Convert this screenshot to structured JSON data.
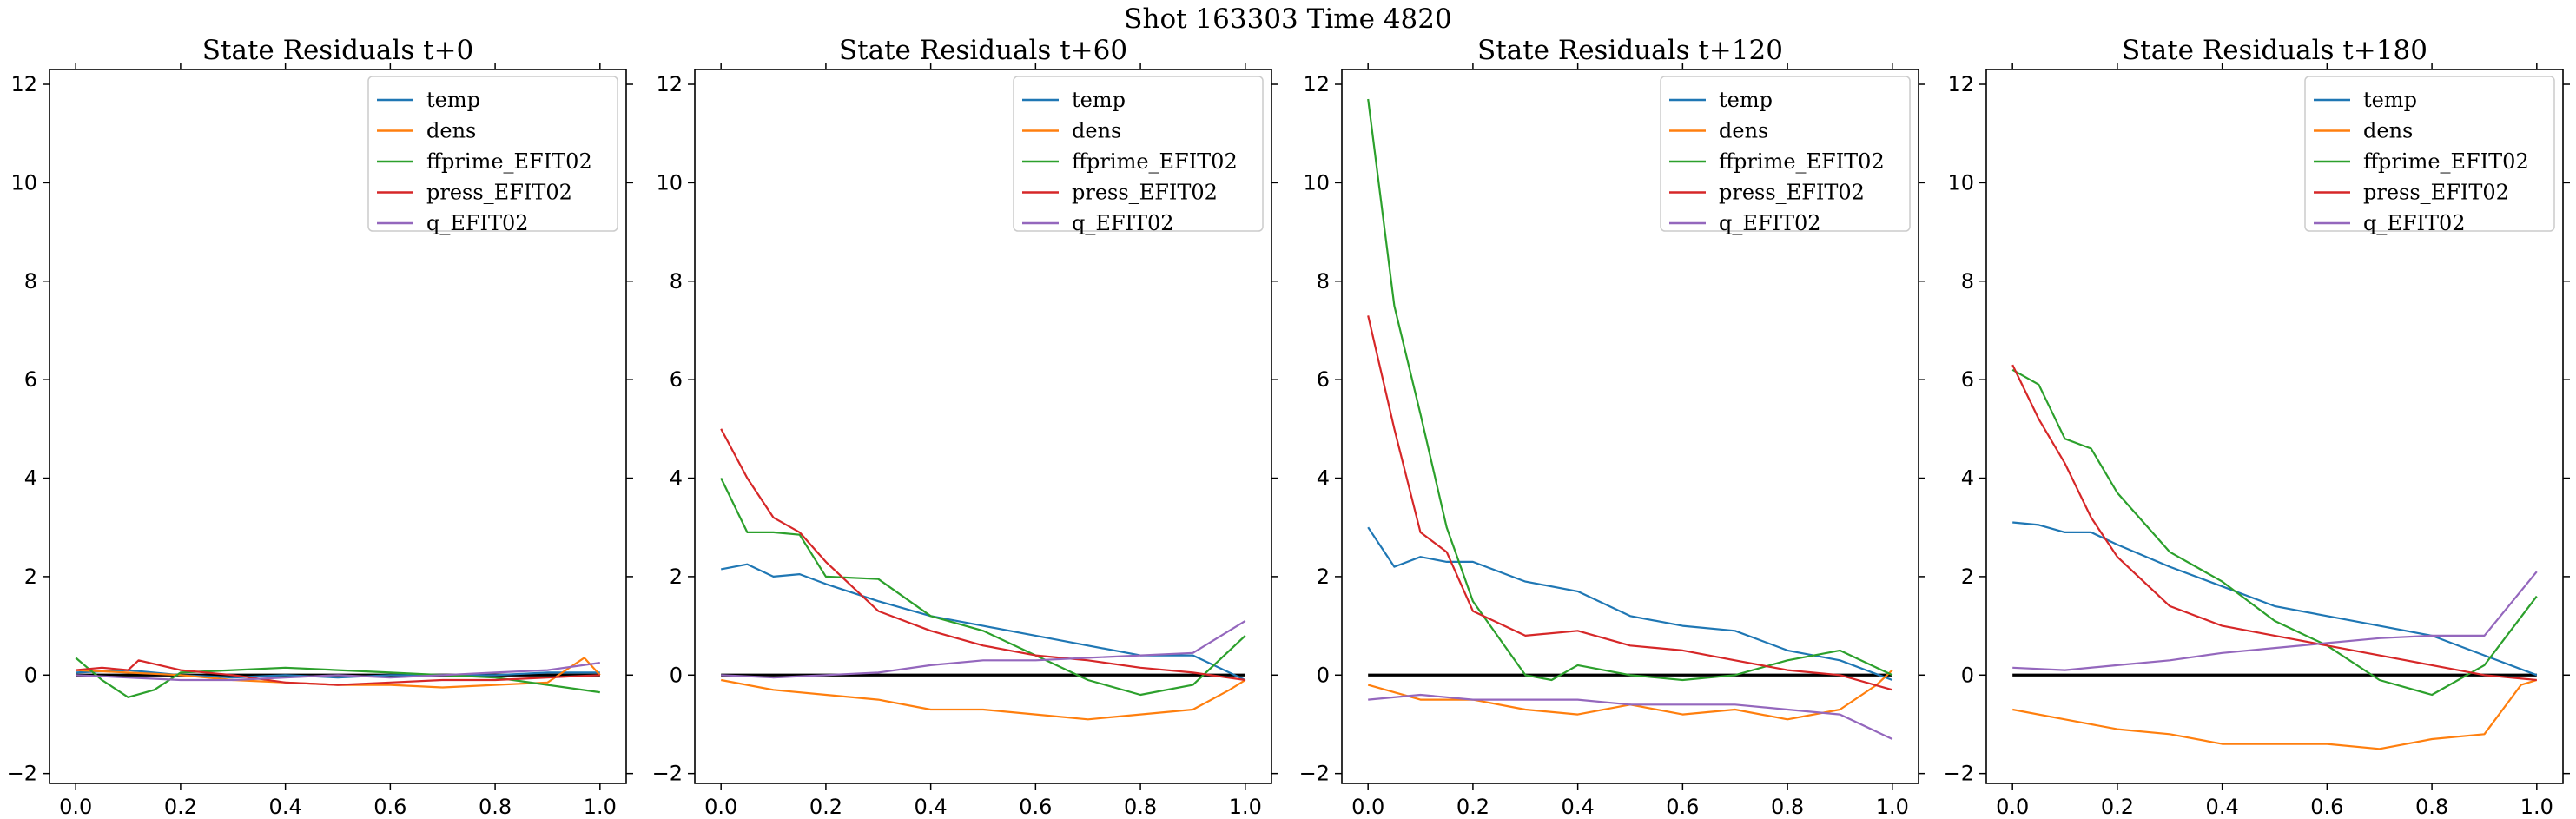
{
  "suptitle": "Shot 163303   Time 4820",
  "colors": {
    "temp": "#1f77b4",
    "dens": "#ff7f0e",
    "ffprime_EFIT02": "#2ca02c",
    "press_EFIT02": "#d62728",
    "q_EFIT02": "#9467bd",
    "zero_line": "#000000"
  },
  "chart_data": [
    {
      "type": "line",
      "title": "State Residuals t+0",
      "xlim": [
        -0.05,
        1.05
      ],
      "ylim": [
        -2.2,
        12.3
      ],
      "xticks": [
        "0.0",
        "0.2",
        "0.4",
        "0.6",
        "0.8",
        "1.0"
      ],
      "yticks": [
        "−2",
        "0",
        "2",
        "4",
        "6",
        "8",
        "10",
        "12"
      ],
      "legend_position": "upper-right",
      "series": [
        {
          "name": "temp",
          "x": [
            0.0,
            0.1,
            0.2,
            0.3,
            0.4,
            0.5,
            0.6,
            0.7,
            0.8,
            0.9,
            1.0
          ],
          "values": [
            0.05,
            0.1,
            0.0,
            -0.05,
            0.0,
            -0.05,
            0.0,
            0.0,
            0.0,
            0.05,
            0.05
          ]
        },
        {
          "name": "dens",
          "x": [
            0.0,
            0.1,
            0.2,
            0.3,
            0.4,
            0.5,
            0.6,
            0.7,
            0.8,
            0.9,
            0.97,
            1.0
          ],
          "values": [
            0.1,
            0.05,
            0.0,
            -0.1,
            -0.15,
            -0.2,
            -0.2,
            -0.25,
            -0.2,
            -0.15,
            0.35,
            0.0
          ]
        },
        {
          "name": "ffprime_EFIT02",
          "x": [
            0.0,
            0.05,
            0.1,
            0.15,
            0.2,
            0.3,
            0.4,
            0.5,
            0.6,
            0.7,
            0.8,
            0.9,
            1.0
          ],
          "values": [
            0.35,
            -0.1,
            -0.45,
            -0.3,
            0.05,
            0.1,
            0.15,
            0.1,
            0.05,
            0.0,
            -0.05,
            -0.2,
            -0.35
          ]
        },
        {
          "name": "press_EFIT02",
          "x": [
            0.0,
            0.05,
            0.1,
            0.12,
            0.2,
            0.3,
            0.4,
            0.5,
            0.6,
            0.7,
            0.8,
            0.9,
            1.0
          ],
          "values": [
            0.1,
            0.15,
            0.1,
            0.3,
            0.1,
            0.0,
            -0.15,
            -0.2,
            -0.15,
            -0.1,
            -0.1,
            -0.05,
            0.0
          ]
        },
        {
          "name": "q_EFIT02",
          "x": [
            0.0,
            0.1,
            0.2,
            0.3,
            0.4,
            0.5,
            0.6,
            0.7,
            0.8,
            0.9,
            1.0
          ],
          "values": [
            0.0,
            -0.05,
            -0.1,
            -0.1,
            -0.05,
            0.0,
            -0.05,
            0.0,
            0.05,
            0.1,
            0.25
          ]
        }
      ]
    },
    {
      "type": "line",
      "title": "State Residuals t+60",
      "xlim": [
        -0.05,
        1.05
      ],
      "ylim": [
        -2.2,
        12.3
      ],
      "xticks": [
        "0.0",
        "0.2",
        "0.4",
        "0.6",
        "0.8",
        "1.0"
      ],
      "yticks": [
        "−2",
        "0",
        "2",
        "4",
        "6",
        "8",
        "10",
        "12"
      ],
      "legend_position": "upper-right",
      "series": [
        {
          "name": "temp",
          "x": [
            0.0,
            0.05,
            0.1,
            0.15,
            0.2,
            0.3,
            0.4,
            0.5,
            0.6,
            0.7,
            0.8,
            0.9,
            1.0
          ],
          "values": [
            2.15,
            2.25,
            2.0,
            2.05,
            1.85,
            1.5,
            1.2,
            1.0,
            0.8,
            0.6,
            0.4,
            0.4,
            -0.1
          ]
        },
        {
          "name": "dens",
          "x": [
            0.0,
            0.1,
            0.2,
            0.3,
            0.4,
            0.5,
            0.6,
            0.7,
            0.8,
            0.9,
            0.97,
            1.0
          ],
          "values": [
            -0.1,
            -0.3,
            -0.4,
            -0.5,
            -0.7,
            -0.7,
            -0.8,
            -0.9,
            -0.8,
            -0.7,
            -0.3,
            -0.1
          ]
        },
        {
          "name": "ffprime_EFIT02",
          "x": [
            0.0,
            0.05,
            0.1,
            0.15,
            0.2,
            0.3,
            0.4,
            0.5,
            0.6,
            0.7,
            0.8,
            0.9,
            1.0
          ],
          "values": [
            4.0,
            2.9,
            2.9,
            2.85,
            2.0,
            1.95,
            1.2,
            0.9,
            0.4,
            -0.1,
            -0.4,
            -0.2,
            0.8
          ]
        },
        {
          "name": "press_EFIT02",
          "x": [
            0.0,
            0.05,
            0.1,
            0.15,
            0.2,
            0.3,
            0.4,
            0.5,
            0.6,
            0.7,
            0.8,
            0.9,
            1.0
          ],
          "values": [
            5.0,
            4.0,
            3.2,
            2.9,
            2.3,
            1.3,
            0.9,
            0.6,
            0.4,
            0.3,
            0.15,
            0.05,
            -0.1
          ]
        },
        {
          "name": "q_EFIT02",
          "x": [
            0.0,
            0.1,
            0.2,
            0.3,
            0.4,
            0.5,
            0.6,
            0.7,
            0.8,
            0.9,
            1.0
          ],
          "values": [
            0.0,
            -0.05,
            0.0,
            0.05,
            0.2,
            0.3,
            0.3,
            0.35,
            0.4,
            0.45,
            1.1
          ]
        }
      ]
    },
    {
      "type": "line",
      "title": "State Residuals t+120",
      "xlim": [
        -0.05,
        1.05
      ],
      "ylim": [
        -2.2,
        12.3
      ],
      "xticks": [
        "0.0",
        "0.2",
        "0.4",
        "0.6",
        "0.8",
        "1.0"
      ],
      "yticks": [
        "−2",
        "0",
        "2",
        "4",
        "6",
        "8",
        "10",
        "12"
      ],
      "legend_position": "upper-right",
      "series": [
        {
          "name": "temp",
          "x": [
            0.0,
            0.05,
            0.1,
            0.15,
            0.2,
            0.3,
            0.4,
            0.5,
            0.6,
            0.7,
            0.8,
            0.9,
            1.0
          ],
          "values": [
            3.0,
            2.2,
            2.4,
            2.3,
            2.3,
            1.9,
            1.7,
            1.2,
            1.0,
            0.9,
            0.5,
            0.3,
            -0.1
          ]
        },
        {
          "name": "dens",
          "x": [
            0.0,
            0.1,
            0.2,
            0.3,
            0.4,
            0.5,
            0.6,
            0.7,
            0.8,
            0.9,
            0.97,
            1.0
          ],
          "values": [
            -0.2,
            -0.5,
            -0.5,
            -0.7,
            -0.8,
            -0.6,
            -0.8,
            -0.7,
            -0.9,
            -0.7,
            -0.2,
            0.1
          ]
        },
        {
          "name": "ffprime_EFIT02",
          "x": [
            0.0,
            0.05,
            0.1,
            0.15,
            0.2,
            0.3,
            0.35,
            0.4,
            0.5,
            0.6,
            0.7,
            0.8,
            0.9,
            1.0
          ],
          "values": [
            11.7,
            7.5,
            5.3,
            3.0,
            1.5,
            0.0,
            -0.1,
            0.2,
            0.0,
            -0.1,
            0.0,
            0.3,
            0.5,
            0.0
          ]
        },
        {
          "name": "press_EFIT02",
          "x": [
            0.0,
            0.05,
            0.1,
            0.15,
            0.2,
            0.3,
            0.4,
            0.5,
            0.6,
            0.7,
            0.8,
            0.9,
            1.0
          ],
          "values": [
            7.3,
            5.0,
            2.9,
            2.5,
            1.3,
            0.8,
            0.9,
            0.6,
            0.5,
            0.3,
            0.1,
            0.0,
            -0.3
          ]
        },
        {
          "name": "q_EFIT02",
          "x": [
            0.0,
            0.1,
            0.2,
            0.3,
            0.4,
            0.5,
            0.6,
            0.7,
            0.8,
            0.9,
            1.0
          ],
          "values": [
            -0.5,
            -0.4,
            -0.5,
            -0.5,
            -0.5,
            -0.6,
            -0.6,
            -0.6,
            -0.7,
            -0.8,
            -1.3
          ]
        }
      ]
    },
    {
      "type": "line",
      "title": "State Residuals t+180",
      "xlim": [
        -0.05,
        1.05
      ],
      "ylim": [
        -2.2,
        12.3
      ],
      "xticks": [
        "0.0",
        "0.2",
        "0.4",
        "0.6",
        "0.8",
        "1.0"
      ],
      "yticks": [
        "−2",
        "0",
        "2",
        "4",
        "6",
        "8",
        "10",
        "12"
      ],
      "legend_position": "upper-right",
      "series": [
        {
          "name": "temp",
          "x": [
            0.0,
            0.05,
            0.1,
            0.15,
            0.2,
            0.3,
            0.4,
            0.5,
            0.6,
            0.7,
            0.8,
            0.9,
            1.0
          ],
          "values": [
            3.1,
            3.05,
            2.9,
            2.9,
            2.65,
            2.2,
            1.8,
            1.4,
            1.2,
            1.0,
            0.8,
            0.4,
            0.0
          ]
        },
        {
          "name": "dens",
          "x": [
            0.0,
            0.1,
            0.2,
            0.3,
            0.4,
            0.5,
            0.6,
            0.7,
            0.8,
            0.9,
            0.97,
            1.0
          ],
          "values": [
            -0.7,
            -0.9,
            -1.1,
            -1.2,
            -1.4,
            -1.4,
            -1.4,
            -1.5,
            -1.3,
            -1.2,
            -0.2,
            -0.1
          ]
        },
        {
          "name": "ffprime_EFIT02",
          "x": [
            0.0,
            0.05,
            0.1,
            0.15,
            0.2,
            0.3,
            0.4,
            0.5,
            0.6,
            0.7,
            0.8,
            0.9,
            1.0
          ],
          "values": [
            6.2,
            5.9,
            4.8,
            4.6,
            3.7,
            2.5,
            1.9,
            1.1,
            0.6,
            -0.1,
            -0.4,
            0.2,
            1.6
          ]
        },
        {
          "name": "press_EFIT02",
          "x": [
            0.0,
            0.05,
            0.1,
            0.15,
            0.2,
            0.3,
            0.4,
            0.5,
            0.6,
            0.7,
            0.8,
            0.9,
            1.0
          ],
          "values": [
            6.3,
            5.2,
            4.3,
            3.2,
            2.4,
            1.4,
            1.0,
            0.8,
            0.6,
            0.4,
            0.2,
            0.0,
            -0.1
          ]
        },
        {
          "name": "q_EFIT02",
          "x": [
            0.0,
            0.1,
            0.2,
            0.3,
            0.4,
            0.5,
            0.6,
            0.7,
            0.8,
            0.9,
            1.0
          ],
          "values": [
            0.15,
            0.1,
            0.2,
            0.3,
            0.45,
            0.55,
            0.65,
            0.75,
            0.8,
            0.8,
            2.1
          ]
        }
      ]
    }
  ]
}
